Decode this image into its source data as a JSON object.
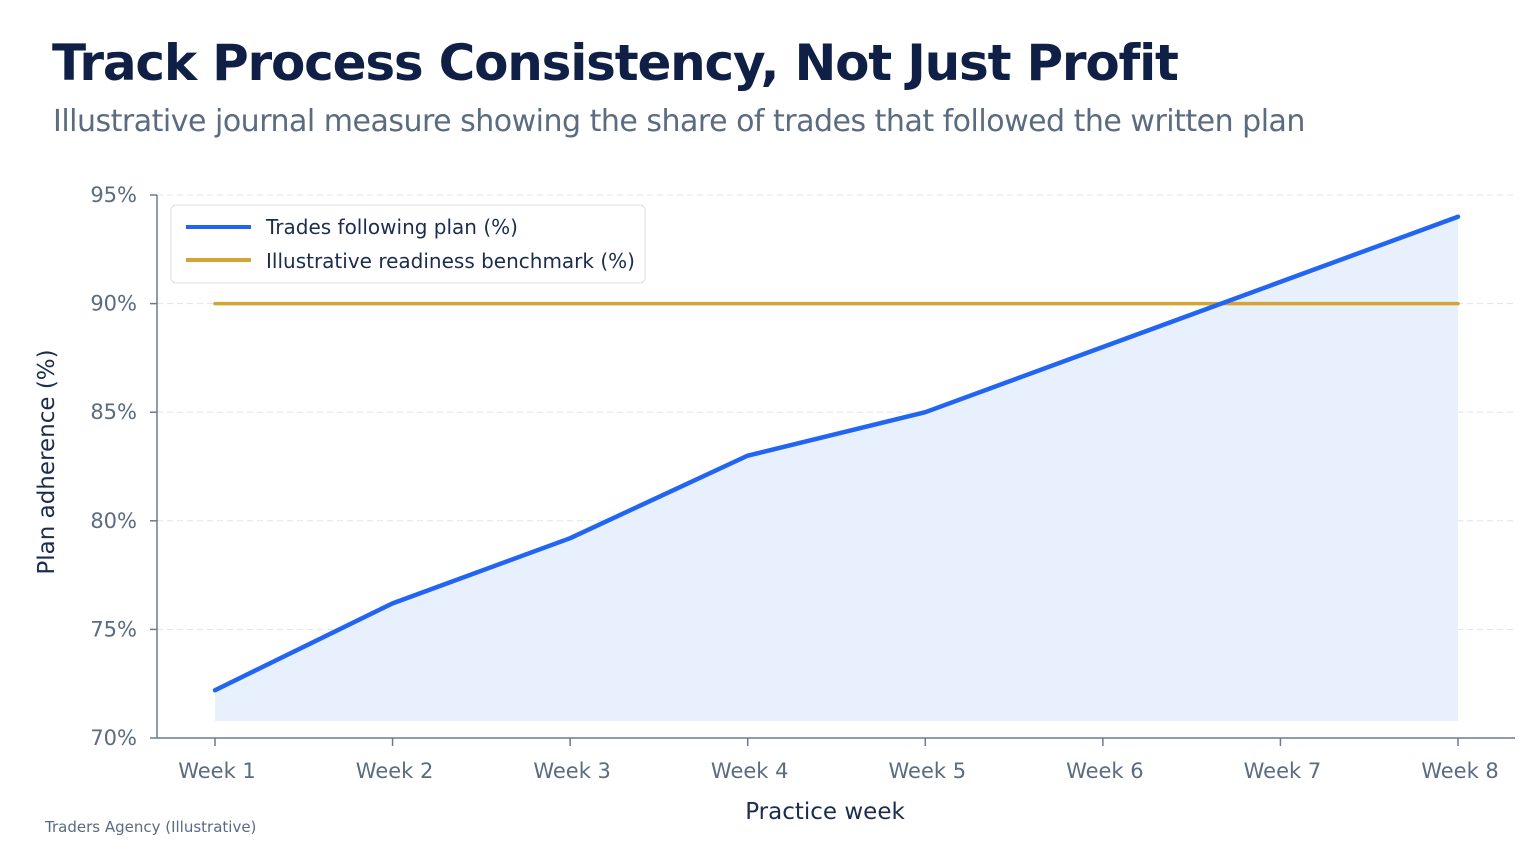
{
  "header": {
    "title": "Track Process Consistency, Not Just Profit",
    "subtitle": "Illustrative journal measure showing the share of trades that followed the written plan"
  },
  "footer": {
    "source": "Traders Agency (Illustrative)"
  },
  "colors": {
    "plan_line": "#2165f2",
    "plan_fill": "#e7f0fc",
    "benchmark_line": "#d4a434",
    "axis": "#6b7a90",
    "grid": "#e1e5eb"
  },
  "chart_data": {
    "type": "area",
    "xlabel": "Practice week",
    "ylabel": "Plan adherence (%)",
    "ylim": [
      70,
      95
    ],
    "y_ticks": [
      70,
      75,
      80,
      85,
      90,
      95
    ],
    "y_tick_labels": [
      "70%",
      "75%",
      "80%",
      "85%",
      "90%",
      "95%"
    ],
    "categories": [
      "Week 1",
      "Week 2",
      "Week 3",
      "Week 4",
      "Week 5",
      "Week 6",
      "Week 7",
      "Week 8"
    ],
    "series": [
      {
        "name": "Trades following plan (%)",
        "values": [
          72.2,
          76.2,
          79.2,
          83.0,
          85.0,
          88.0,
          91.0,
          94.0
        ]
      },
      {
        "name": "Illustrative readiness benchmark (%)",
        "values": [
          90,
          90,
          90,
          90,
          90,
          90,
          90,
          90
        ]
      }
    ],
    "grid": true,
    "legend_position": "top-left"
  }
}
